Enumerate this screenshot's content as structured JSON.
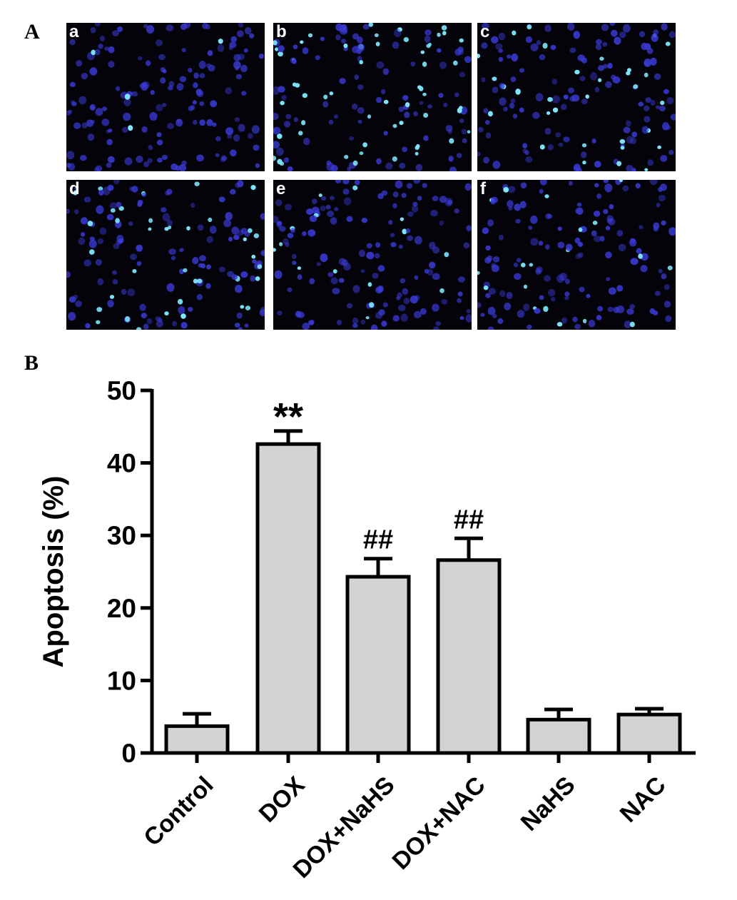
{
  "panel_a": {
    "letter": "A",
    "images": [
      {
        "label": "a",
        "bright_fraction": 0.05
      },
      {
        "label": "b",
        "bright_fraction": 0.4
      },
      {
        "label": "c",
        "bright_fraction": 0.22
      },
      {
        "label": "d",
        "bright_fraction": 0.2
      },
      {
        "label": "e",
        "bright_fraction": 0.08
      },
      {
        "label": "f",
        "bright_fraction": 0.08
      }
    ],
    "colors": {
      "background": "#030309",
      "nucleus": "#3a3ad6",
      "bright_nucleus": "#7fe9ff"
    }
  },
  "panel_b": {
    "letter": "B",
    "chart_data": {
      "type": "bar",
      "categories": [
        "Control",
        "DOX",
        "DOX+NaHS",
        "DOX+NAC",
        "NaHS",
        "NAC"
      ],
      "values": [
        3.7,
        42.6,
        24.3,
        26.6,
        4.6,
        5.3
      ],
      "errors": [
        1.7,
        1.8,
        2.5,
        3.0,
        1.4,
        0.8
      ],
      "annotations": [
        "",
        "**",
        "##",
        "##",
        "",
        ""
      ],
      "xlabel": "",
      "ylabel": "Apoptosis (%)",
      "ylim": [
        0,
        50
      ],
      "yticks": [
        0,
        10,
        20,
        30,
        40,
        50
      ],
      "grid": false,
      "bar_color": "#d3d3d3",
      "edge_color": "#000000"
    }
  }
}
